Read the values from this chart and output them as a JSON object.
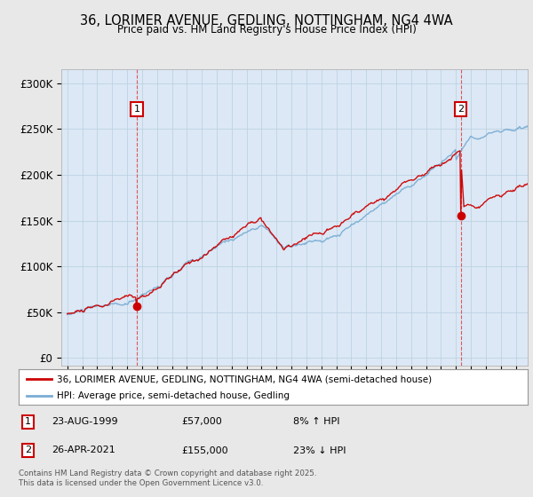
{
  "title": "36, LORIMER AVENUE, GEDLING, NOTTINGHAM, NG4 4WA",
  "subtitle": "Price paid vs. HM Land Registry's House Price Index (HPI)",
  "background_color": "#e8e8e8",
  "plot_bg_color": "#dce8f5",
  "legend_entries": [
    "36, LORIMER AVENUE, GEDLING, NOTTINGHAM, NG4 4WA (semi-detached house)",
    "HPI: Average price, semi-detached house, Gedling"
  ],
  "legend_colors": [
    "#cc0000",
    "#7aadd4"
  ],
  "annotation1": {
    "label": "1",
    "date": "23-AUG-1999",
    "price": "£57,000",
    "pct": "8% ↑ HPI"
  },
  "annotation2": {
    "label": "2",
    "date": "26-APR-2021",
    "price": "£155,000",
    "pct": "23% ↓ HPI"
  },
  "footnote": "Contains HM Land Registry data © Crown copyright and database right 2025.\nThis data is licensed under the Open Government Licence v3.0.",
  "ylabel_ticks": [
    "£0",
    "£50K",
    "£100K",
    "£150K",
    "£200K",
    "£250K",
    "£300K"
  ],
  "ytick_values": [
    0,
    50000,
    100000,
    150000,
    200000,
    250000,
    300000
  ],
  "ylim": [
    -8000,
    315000
  ],
  "xlim_left": 1994.6,
  "xlim_right": 2025.8,
  "sale1_x": 1999.65,
  "sale1_y": 57000,
  "sale2_x": 2021.32,
  "sale2_y": 155000
}
